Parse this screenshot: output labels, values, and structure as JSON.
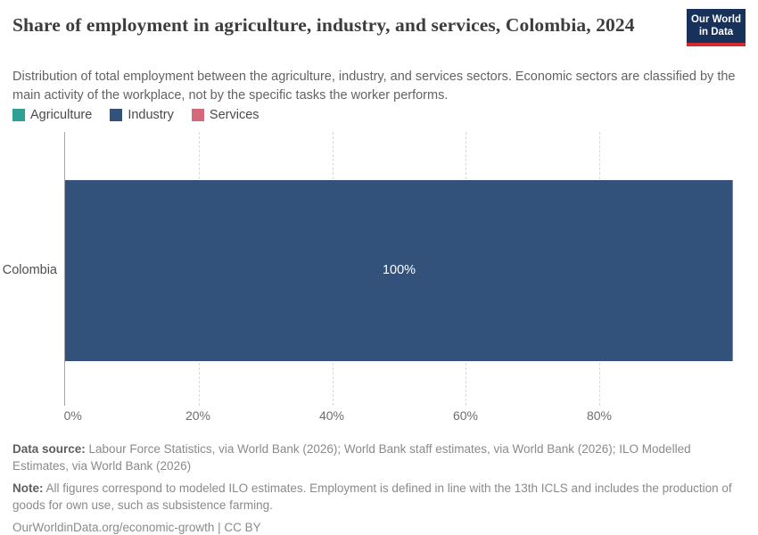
{
  "header": {
    "title": "Share of employment in agriculture, industry, and services, Colombia, 2024",
    "subtitle": "Distribution of total employment between the agriculture, industry, and services sectors. Economic sectors are classified by the main activity of the workplace, not by the specific tasks the worker performs.",
    "logo": {
      "line1": "Our World",
      "line2": "in Data",
      "bg_color": "#18315b",
      "accent_color": "#d42b2f"
    }
  },
  "legend": {
    "items": [
      {
        "label": "Agriculture",
        "color": "#2fa093"
      },
      {
        "label": "Industry",
        "color": "#32527b"
      },
      {
        "label": "Services",
        "color": "#d4697b"
      }
    ]
  },
  "chart_data": {
    "type": "bar",
    "orientation": "horizontal",
    "stacked": true,
    "categories": [
      "Colombia"
    ],
    "series": [
      {
        "name": "Agriculture",
        "values": [
          0
        ],
        "color": "#2fa093"
      },
      {
        "name": "Industry",
        "values": [
          99.8
        ],
        "color": "#32527b"
      },
      {
        "name": "Services",
        "values": [
          0.2
        ],
        "color": "#d4697b"
      }
    ],
    "bar_label": "100%",
    "title": "Share of employment in agriculture, industry, and services, Colombia, 2024",
    "xlabel": "",
    "ylabel": "",
    "xlim": [
      0,
      100
    ],
    "x_ticks": [
      "0%",
      "20%",
      "40%",
      "60%",
      "80%"
    ],
    "grid": "vertical-dashed",
    "legend_position": "top-left",
    "axis_color": "#a6a6a6",
    "gridline_color": "#d9d9d9"
  },
  "footer": {
    "datasource_label": "Data source:",
    "datasource_text": " Labour Force Statistics, via World Bank (2026); World Bank staff estimates, via World Bank (2026); ILO Modelled Estimates, via World Bank (2026)",
    "note_label": "Note:",
    "note_text": " All figures correspond to modeled ILO estimates. Employment is defined in line with the 13th ICLS and includes the production of goods for own use, such as subsistence farming.",
    "url": "OurWorldinData.org/economic-growth | CC BY"
  }
}
